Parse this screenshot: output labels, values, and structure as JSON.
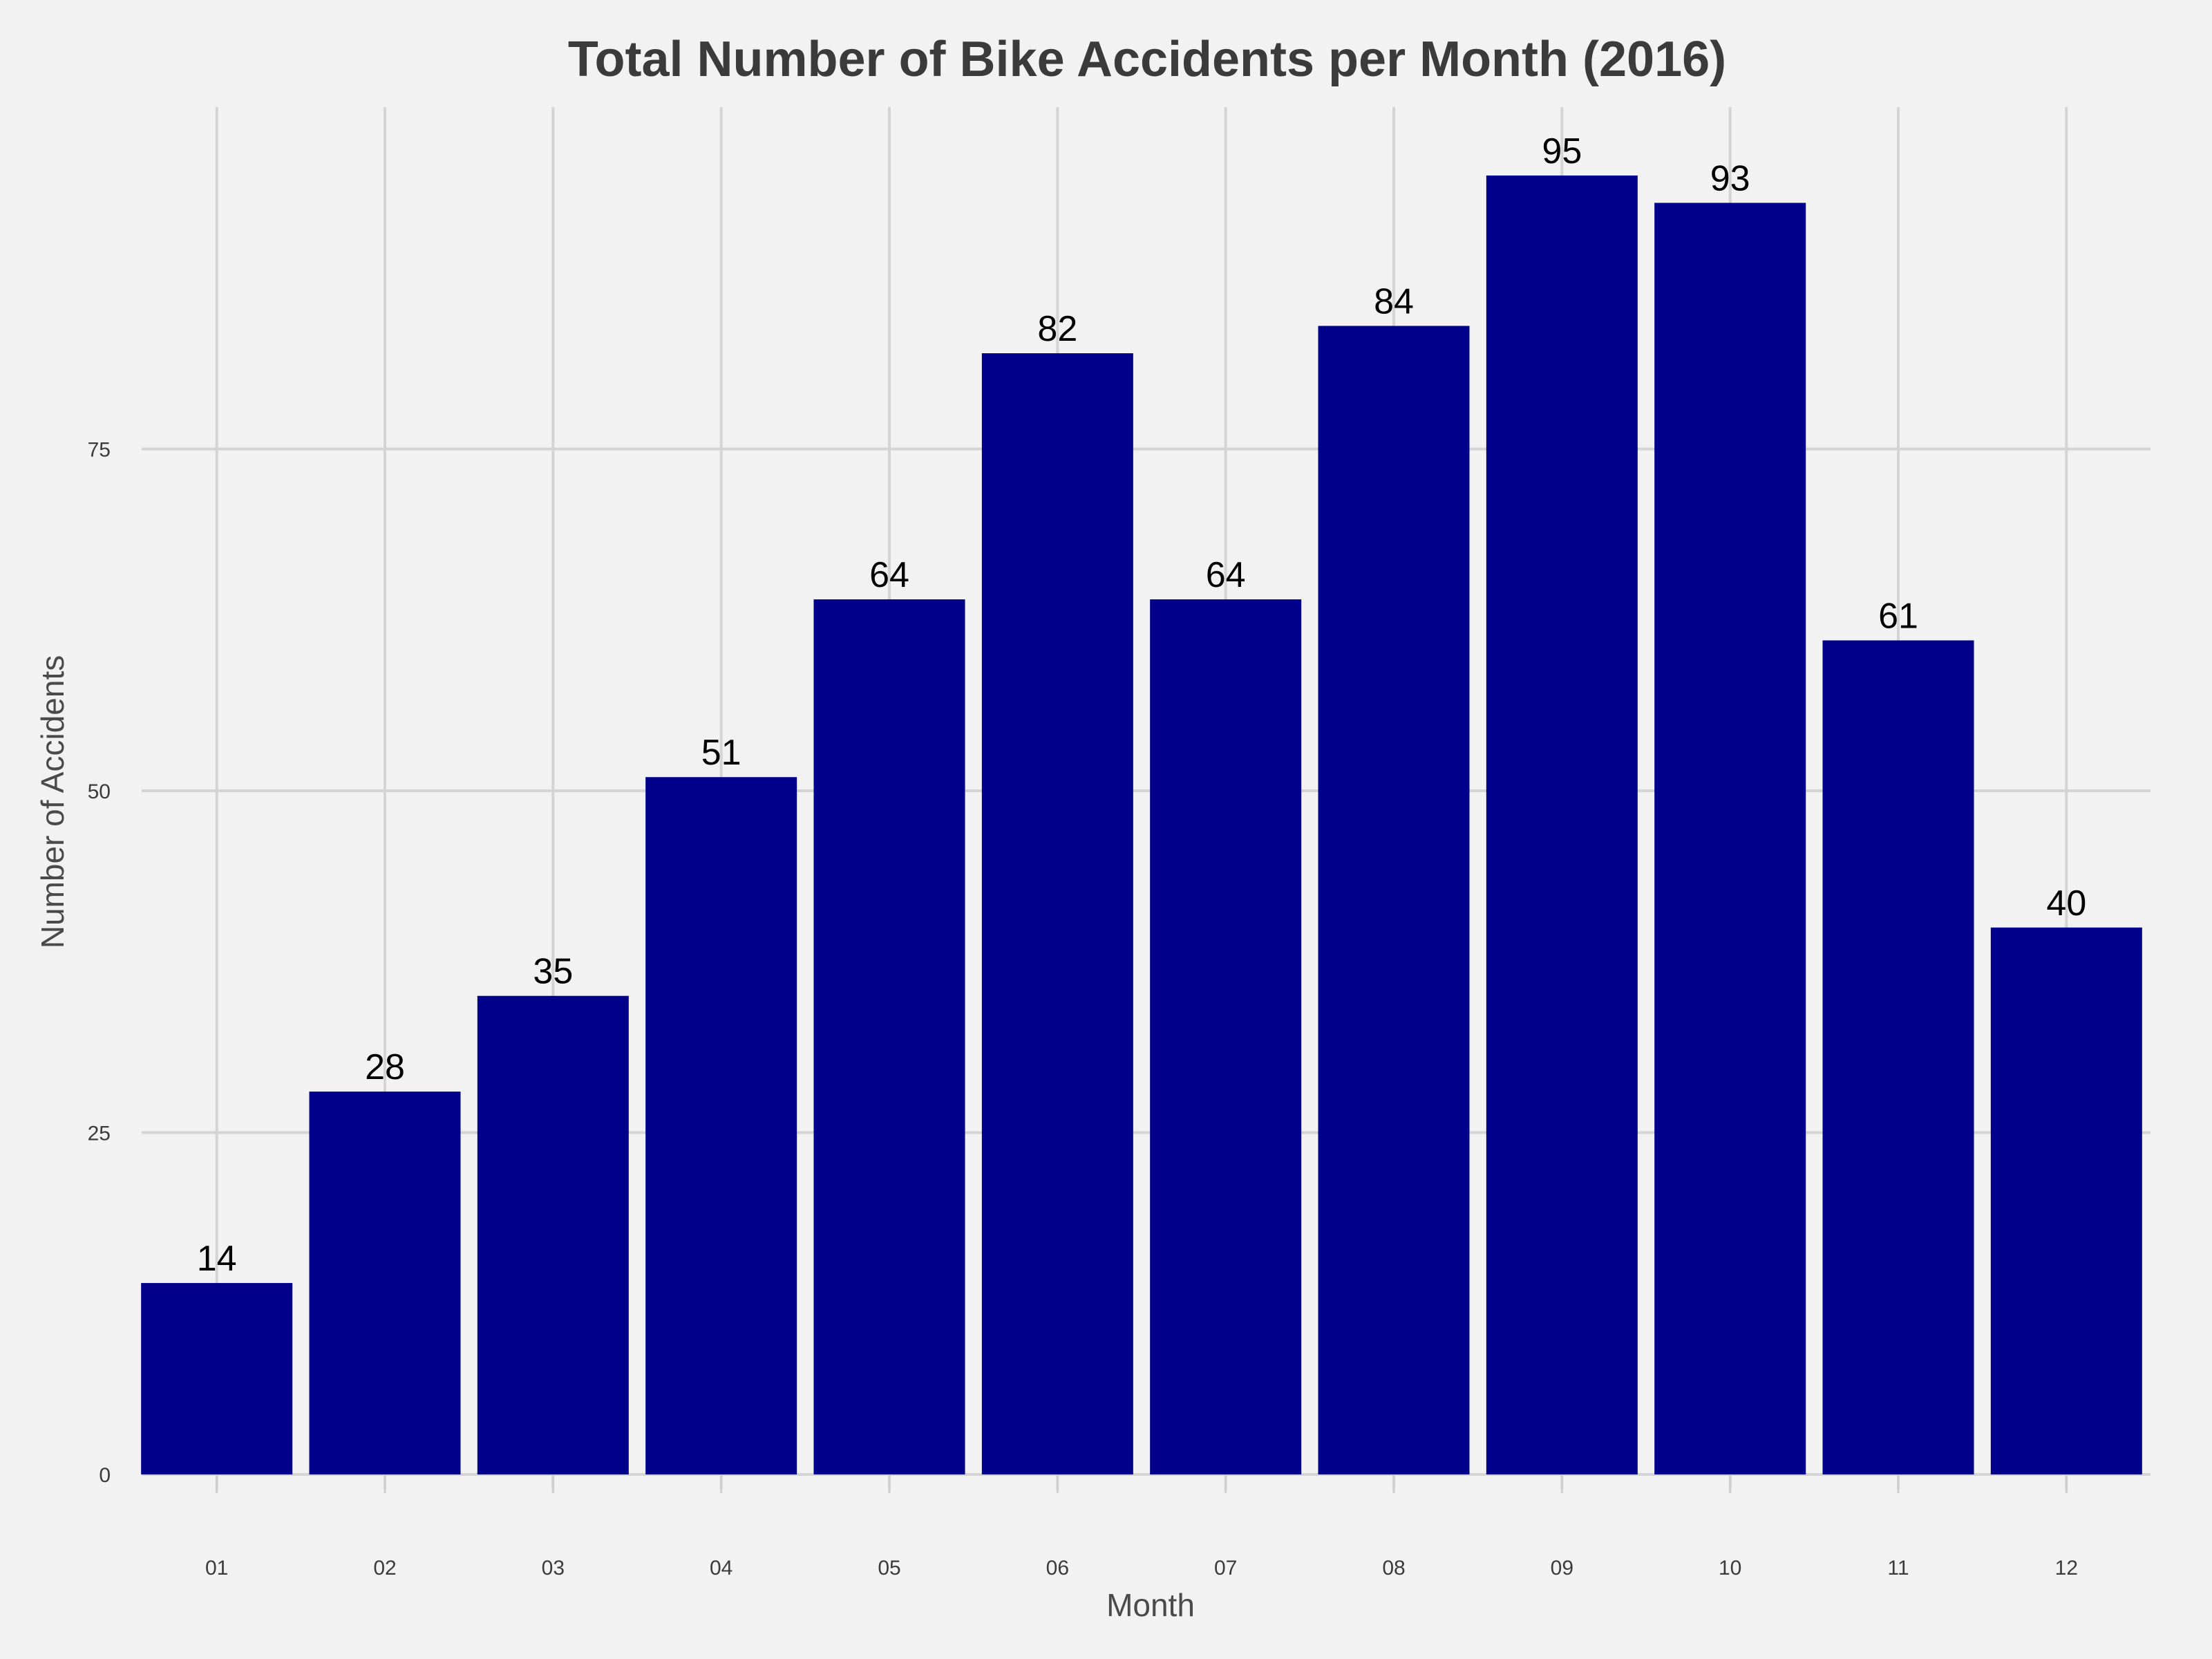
{
  "chart_data": {
    "type": "bar",
    "title": "Total Number of Bike Accidents per Month (2016)",
    "xlabel": "Month",
    "ylabel": "Number of Accidents",
    "categories": [
      "01",
      "02",
      "03",
      "04",
      "05",
      "06",
      "07",
      "08",
      "09",
      "10",
      "11",
      "12"
    ],
    "values": [
      14,
      28,
      35,
      51,
      64,
      82,
      64,
      84,
      95,
      93,
      61,
      40
    ],
    "yticks": [
      0,
      25,
      50,
      75
    ],
    "ylim": [
      0,
      100
    ],
    "grid": true,
    "bar_color": "#00008b",
    "background_color": "#f2f2f2",
    "grid_color": "#d4d4d4"
  }
}
